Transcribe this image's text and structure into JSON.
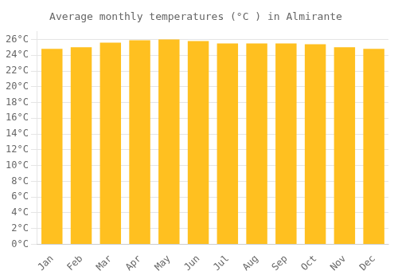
{
  "chart_data": {
    "type": "bar",
    "title": "Average monthly temperatures (°C ) in Almirante",
    "categories": [
      "Jan",
      "Feb",
      "Mar",
      "Apr",
      "May",
      "Jun",
      "Jul",
      "Aug",
      "Sep",
      "Oct",
      "Nov",
      "Dec"
    ],
    "values": [
      24.8,
      25.0,
      25.6,
      25.9,
      26.0,
      25.8,
      25.5,
      25.5,
      25.5,
      25.4,
      25.0,
      24.8
    ],
    "color": "#FFC020",
    "ylim": [
      0,
      27
    ],
    "yticks": [
      {
        "value": 0,
        "label": "0°C"
      },
      {
        "value": 2,
        "label": "2°C"
      },
      {
        "value": 4,
        "label": "4°C"
      },
      {
        "value": 6,
        "label": "6°C"
      },
      {
        "value": 8,
        "label": "8°C"
      },
      {
        "value": 10,
        "label": "10°C"
      },
      {
        "value": 12,
        "label": "12°C"
      },
      {
        "value": 14,
        "label": "14°C"
      },
      {
        "value": 16,
        "label": "16°C"
      },
      {
        "value": 18,
        "label": "18°C"
      },
      {
        "value": 20,
        "label": "20°C"
      },
      {
        "value": 22,
        "label": "22°C"
      },
      {
        "value": 24,
        "label": "24°C"
      },
      {
        "value": 26,
        "label": "26°C"
      }
    ],
    "grid": true
  }
}
